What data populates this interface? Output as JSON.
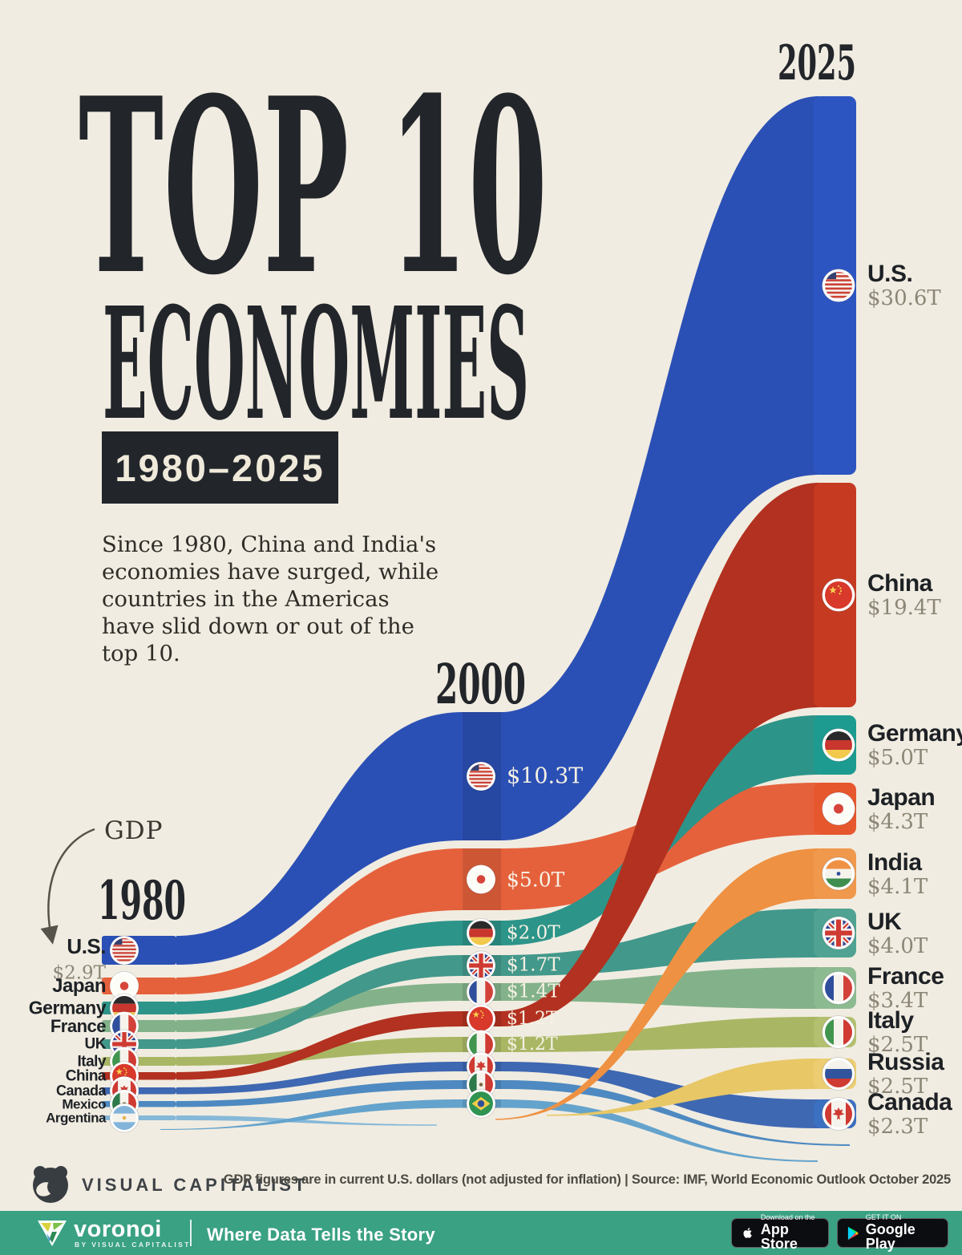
{
  "header": {
    "title_line1": "TOP 10",
    "title_line2": "ECONOMIES",
    "period": "1980–2025",
    "subtitle": "Since 1980, China and India's economies have surged, while countries in the Americas have slid down or out of the top 10.",
    "gdp_label": "GDP"
  },
  "columns": {
    "y1980": {
      "label": "1980"
    },
    "y2000": {
      "label": "2000"
    },
    "y2025": {
      "label": "2025"
    }
  },
  "chart_data": {
    "type": "alluvial",
    "title": "Top 10 Economies 1980-2025",
    "years": [
      "1980",
      "2000",
      "2025"
    ],
    "units": "USD trillions (current, not adjusted for inflation)",
    "countries": [
      {
        "id": "us",
        "name": "U.S.",
        "flag": "us",
        "color": "#2b50b5",
        "node_color": "#2d55c2",
        "ranks": {
          "y1980": 1,
          "y2000": 1,
          "y2025": 1
        },
        "gdp_trillions": {
          "y1980": 2.9,
          "y2000": 10.3,
          "y2025": 30.6
        },
        "shown_labels": {
          "y1980": "$2.9T",
          "y2000": "$10.3T",
          "y2025": "$30.6T"
        }
      },
      {
        "id": "japan",
        "name": "Japan",
        "flag": "japan",
        "color": "#e5613c",
        "node_color": "#e7572e",
        "ranks": {
          "y1980": 2,
          "y2000": 2,
          "y2025": 4
        },
        "gdp_trillions": {
          "y1980": 1.1,
          "y2000": 5.0,
          "y2025": 4.3
        },
        "shown_labels": {
          "y1980": null,
          "y2000": "$5.0T",
          "y2025": "$4.3T"
        }
      },
      {
        "id": "germany",
        "name": "Germany",
        "flag": "germany",
        "color": "#2d9489",
        "node_color": "#1d9b90",
        "ranks": {
          "y1980": 3,
          "y2000": 3,
          "y2025": 3
        },
        "gdp_trillions": {
          "y1980": 0.9,
          "y2000": 2.0,
          "y2025": 5.0
        },
        "shown_labels": {
          "y1980": null,
          "y2000": "$2.0T",
          "y2025": "$5.0T"
        }
      },
      {
        "id": "france",
        "name": "France",
        "flag": "france",
        "color": "#83b28a",
        "node_color": "#8cbb92",
        "ranks": {
          "y1980": 4,
          "y2000": 5,
          "y2025": 7
        },
        "gdp_trillions": {
          "y1980": 0.7,
          "y2000": 1.4,
          "y2025": 3.4
        },
        "shown_labels": {
          "y1980": null,
          "y2000": "$1.4T",
          "y2025": "$3.4T"
        }
      },
      {
        "id": "uk",
        "name": "UK",
        "flag": "uk",
        "color": "#42988b",
        "node_color": "#50a392",
        "ranks": {
          "y1980": 5,
          "y2000": 4,
          "y2025": 6
        },
        "gdp_trillions": {
          "y1980": 0.6,
          "y2000": 1.7,
          "y2025": 4.0
        },
        "shown_labels": {
          "y1980": null,
          "y2000": "$1.7T",
          "y2025": "$4.0T"
        }
      },
      {
        "id": "italy",
        "name": "Italy",
        "flag": "italy",
        "color": "#a9b765",
        "node_color": "#b3c06f",
        "ranks": {
          "y1980": 6,
          "y2000": 7,
          "y2025": 8
        },
        "gdp_trillions": {
          "y1980": 0.5,
          "y2000": 1.2,
          "y2025": 2.5
        },
        "shown_labels": {
          "y1980": null,
          "y2000": "$1.2T",
          "y2025": "$2.5T"
        }
      },
      {
        "id": "china",
        "name": "China",
        "flag": "china",
        "color": "#b23120",
        "node_color": "#c63a22",
        "ranks": {
          "y1980": 7,
          "y2000": 6,
          "y2025": 2
        },
        "gdp_trillions": {
          "y1980": 0.3,
          "y2000": 1.2,
          "y2025": 19.4
        },
        "shown_labels": {
          "y1980": null,
          "y2000": "$1.2T",
          "y2025": "$19.4T"
        }
      },
      {
        "id": "canada",
        "name": "Canada",
        "flag": "canada",
        "color": "#3e68b2",
        "node_color": "#3c70c0",
        "ranks": {
          "y1980": 8,
          "y2000": 8,
          "y2025": 10
        },
        "gdp_trillions": {
          "y1980": 0.3,
          "y2000": 0.8,
          "y2025": 2.3
        },
        "shown_labels": {
          "y1980": null,
          "y2000": null,
          "y2025": "$2.3T"
        }
      },
      {
        "id": "mexico",
        "name": "Mexico",
        "flag": "mexico",
        "color": "#4e8ac1",
        "node_color": "#4e8ac1",
        "ranks": {
          "y1980": 9,
          "y2000": 9,
          "y2025": null
        },
        "gdp_trillions": {
          "y1980": 0.2,
          "y2000": 0.7,
          "y2025": null
        },
        "shown_labels": {
          "y1980": null,
          "y2000": null,
          "y2025": null
        }
      },
      {
        "id": "argentina",
        "name": "Argentina",
        "flag": "argentina",
        "color": "#86b8d8",
        "node_color": "#86b8d8",
        "ranks": {
          "y1980": 10,
          "y2000": null,
          "y2025": null
        },
        "gdp_trillions": {
          "y1980": 0.1,
          "y2000": null,
          "y2025": null
        },
        "shown_labels": {
          "y1980": null,
          "y2000": null,
          "y2025": null
        }
      },
      {
        "id": "brazil",
        "name": "Brazil",
        "flag": "brazil",
        "color": "#64a3cc",
        "node_color": "#64a3cc",
        "ranks": {
          "y1980": null,
          "y2000": 10,
          "y2025": null
        },
        "gdp_trillions": {
          "y1980": null,
          "y2000": 0.7,
          "y2025": null
        },
        "shown_labels": {
          "y1980": null,
          "y2000": null,
          "y2025": null
        }
      },
      {
        "id": "india",
        "name": "India",
        "flag": "india",
        "color": "#ee9142",
        "node_color": "#f0984c",
        "ranks": {
          "y1980": null,
          "y2000": null,
          "y2025": 5
        },
        "gdp_trillions": {
          "y1980": null,
          "y2000": null,
          "y2025": 4.1
        },
        "shown_labels": {
          "y1980": null,
          "y2000": null,
          "y2025": "$4.1T"
        }
      },
      {
        "id": "russia",
        "name": "Russia",
        "flag": "russia",
        "color": "#e8c766",
        "node_color": "#eccd72",
        "ranks": {
          "y1980": null,
          "y2000": null,
          "y2025": 9
        },
        "gdp_trillions": {
          "y1980": null,
          "y2000": null,
          "y2025": 2.5
        },
        "shown_labels": {
          "y1980": null,
          "y2000": null,
          "y2025": "$2.5T"
        }
      }
    ]
  },
  "footer": {
    "brand": "VISUAL CAPITALIST",
    "note": "GDP figures are in current U.S. dollars (not adjusted for inflation)  |  Source: IMF, World Economic Outlook October 2025"
  },
  "bottombar": {
    "logo_text": "voronoi",
    "logo_sub": "BY VISUAL CAPITALIST",
    "tagline": "Where Data Tells the Story",
    "appstore": {
      "line1": "Download on the",
      "line2": "App Store"
    },
    "googleplay": {
      "line1": "GET IT ON",
      "line2": "Google Play"
    },
    "bar_color": "#3aa183"
  },
  "colors": {
    "background": "#f1ece1",
    "ink": "#22252a",
    "value_gray": "#8c8677",
    "value_on_band": "#f6f1e4"
  }
}
